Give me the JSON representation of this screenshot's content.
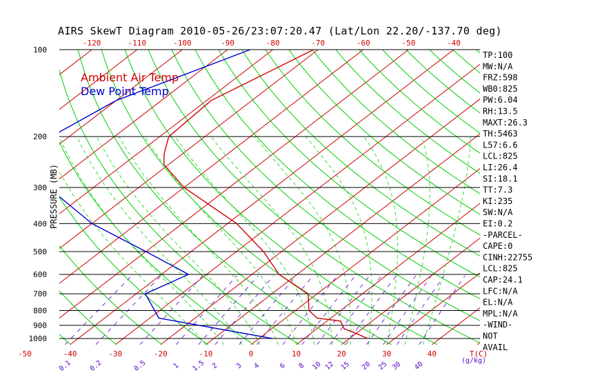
{
  "title": "AIRS SkewT Diagram 2010-05-26/23:07:20.47 (Lat/Lon 22.20/-137.70 deg)",
  "chart_data": {
    "type": "line",
    "title": "AIRS SkewT Diagram 2010-05-26/23:07:20.47 (Lat/Lon 22.20/-137.70 deg)",
    "ylabel": "PRESSURE (MB)",
    "y_scale": "log",
    "ylim": [
      1050,
      100
    ],
    "y_ticks": [
      100,
      200,
      300,
      400,
      500,
      600,
      700,
      800,
      900,
      1000
    ],
    "x_label_top": "",
    "x_ticks_top": [
      "-120",
      "-110",
      "-100",
      "-90",
      "-80",
      "-70",
      "-60",
      "-50",
      "-40"
    ],
    "x_ticks_bottom": [
      "-50",
      "-40",
      "-30",
      "-20",
      "-10",
      "0",
      "10",
      "20",
      "30",
      "40"
    ],
    "x_label_bottom": "T(C)",
    "mixing_ratio_labels": [
      "0.1",
      "0.2",
      "0.5",
      "1",
      "1.5",
      "2",
      "3",
      "4",
      "6",
      "8",
      "10",
      "12",
      "15",
      "20",
      "25",
      "30",
      "40"
    ],
    "mixing_ratio_unit": "(g/kg)",
    "legend": [
      "Ambient Air Temp",
      "Dew Point Temp"
    ],
    "legend_position": "top-left",
    "series": [
      {
        "name": "Ambient Air Temp",
        "color": "#cc0000",
        "points": [
          {
            "p": 100,
            "t": -71
          },
          {
            "p": 150,
            "t": -79
          },
          {
            "p": 200,
            "t": -78
          },
          {
            "p": 230,
            "t": -74
          },
          {
            "p": 250,
            "t": -71
          },
          {
            "p": 300,
            "t": -60
          },
          {
            "p": 400,
            "t": -38
          },
          {
            "p": 500,
            "t": -24
          },
          {
            "p": 600,
            "t": -14
          },
          {
            "p": 700,
            "t": -2
          },
          {
            "p": 800,
            "t": 3
          },
          {
            "p": 850,
            "t": 7
          },
          {
            "p": 870,
            "t": 13
          },
          {
            "p": 925,
            "t": 16
          },
          {
            "p": 960,
            "t": 20
          },
          {
            "p": 1000,
            "t": 24
          }
        ]
      },
      {
        "name": "Dew Point Temp",
        "color": "#0000cc",
        "points": [
          {
            "p": 100,
            "t": -85
          },
          {
            "p": 150,
            "t": -100
          },
          {
            "p": 200,
            "t": -104
          },
          {
            "p": 250,
            "t": -103
          },
          {
            "p": 300,
            "t": -90
          },
          {
            "p": 400,
            "t": -70
          },
          {
            "p": 500,
            "t": -50
          },
          {
            "p": 600,
            "t": -34
          },
          {
            "p": 700,
            "t": -38
          },
          {
            "p": 850,
            "t": -28
          },
          {
            "p": 1000,
            "t": 3
          }
        ]
      }
    ]
  },
  "indices": [
    "TP:100",
    "MW:N/A",
    "FRZ:598",
    "WB0:825",
    "PW:6.04",
    "RH:13.5",
    "MAXT:26.3",
    "TH:5463",
    "L57:6.6",
    "LCL:825",
    "LI:26.4",
    "SI:18.1",
    "TT:7.3",
    "KI:235",
    "SW:N/A",
    "EI:0.2",
    "-PARCEL-",
    "CAPE:0",
    "CINH:22755",
    "LCL:825",
    "CAP:24.1",
    "LFC:N/A",
    "EL:N/A",
    "MPL:N/A",
    "-WIND-",
    "NOT",
    "AVAIL"
  ],
  "colors": {
    "isotherm": "#cc0000",
    "dry_adiabat": "#00cc00",
    "moist_adiabat": "#33dd33",
    "mixing_ratio": "#6a2ad8",
    "temperature": "#cc0000",
    "dewpoint": "#0000cc"
  }
}
